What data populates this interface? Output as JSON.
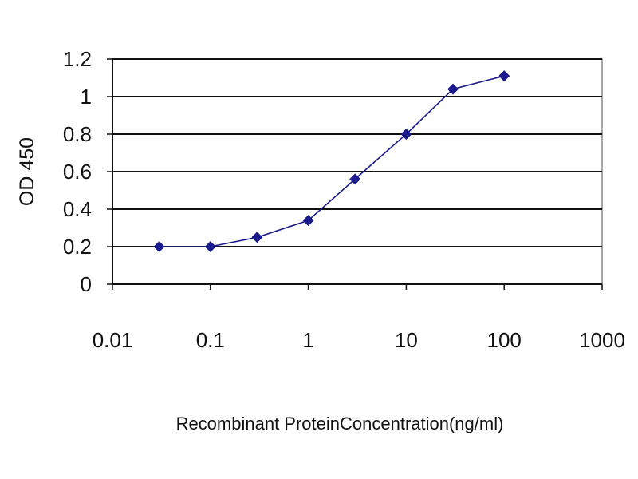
{
  "chart_data": {
    "type": "scatter",
    "x_scale": "log",
    "xlim": [
      0.01,
      1000
    ],
    "ylim": [
      0,
      1.2
    ],
    "x_ticks": [
      "0.01",
      "0.1",
      "1",
      "10",
      "100",
      "1000"
    ],
    "y_ticks": [
      "0",
      "0.2",
      "0.4",
      "0.6",
      "0.8",
      "1",
      "1.2"
    ],
    "xlabel": "Recombinant ProteinConcentration(ng/ml)",
    "ylabel": "OD 450",
    "grid": "horizontal",
    "legend": "none",
    "series": [
      {
        "marker": "diamond",
        "color": "#1a1a8c",
        "points": [
          {
            "x": 0.03,
            "y": 0.2
          },
          {
            "x": 0.1,
            "y": 0.2
          },
          {
            "x": 0.3,
            "y": 0.25
          },
          {
            "x": 1,
            "y": 0.34
          },
          {
            "x": 3,
            "y": 0.56
          },
          {
            "x": 10,
            "y": 0.8
          },
          {
            "x": 30,
            "y": 1.04
          },
          {
            "x": 100,
            "y": 1.11
          }
        ]
      }
    ]
  }
}
